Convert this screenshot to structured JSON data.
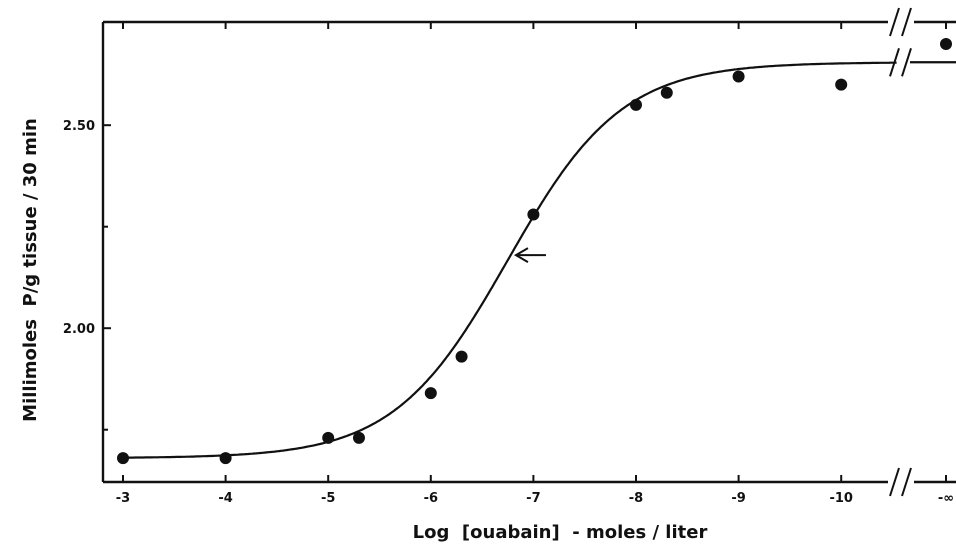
{
  "chart_data": {
    "type": "scatter",
    "title": "",
    "xlabel": "Log  [ouabain]  - moles / liter",
    "ylabel": "Millimoles  P/g tissue / 30 min",
    "x_axis_break": true,
    "y_axis_break": true,
    "xlim": [
      -3,
      -10.55
    ],
    "ylim": [
      1.66,
      2.745
    ],
    "x_ticks": [
      {
        "value": -3,
        "label": "-3"
      },
      {
        "value": -4,
        "label": "-4"
      },
      {
        "value": -5,
        "label": "-5"
      },
      {
        "value": -6,
        "label": "-6"
      },
      {
        "value": -7,
        "label": "-7"
      },
      {
        "value": -8,
        "label": "-8"
      },
      {
        "value": -9,
        "label": "-9"
      },
      {
        "value": -10,
        "label": "-10"
      },
      {
        "value": "-inf",
        "label": "-∞"
      }
    ],
    "y_ticks": [
      {
        "value": 2.0,
        "label": "2.00"
      },
      {
        "value": 2.5,
        "label": "2.50"
      }
    ],
    "points": [
      {
        "x": -3,
        "y": 1.68
      },
      {
        "x": -4,
        "y": 1.68
      },
      {
        "x": -5,
        "y": 1.73
      },
      {
        "x": -5.3,
        "y": 1.73
      },
      {
        "x": -6,
        "y": 1.84
      },
      {
        "x": -6.3,
        "y": 1.93
      },
      {
        "x": -7,
        "y": 2.28
      },
      {
        "x": -8,
        "y": 2.55
      },
      {
        "x": -8.3,
        "y": 2.58
      },
      {
        "x": -9,
        "y": 2.62
      },
      {
        "x": -10,
        "y": 2.6
      },
      {
        "x": "-inf",
        "y": 2.7
      }
    ],
    "fit_curve": {
      "bottom": 1.68,
      "top": 2.655,
      "midpoint": -6.75,
      "slope": 1.8
    },
    "annotation": {
      "type": "arrow",
      "pointing": "left",
      "x": -6.83,
      "y": 2.18
    }
  }
}
